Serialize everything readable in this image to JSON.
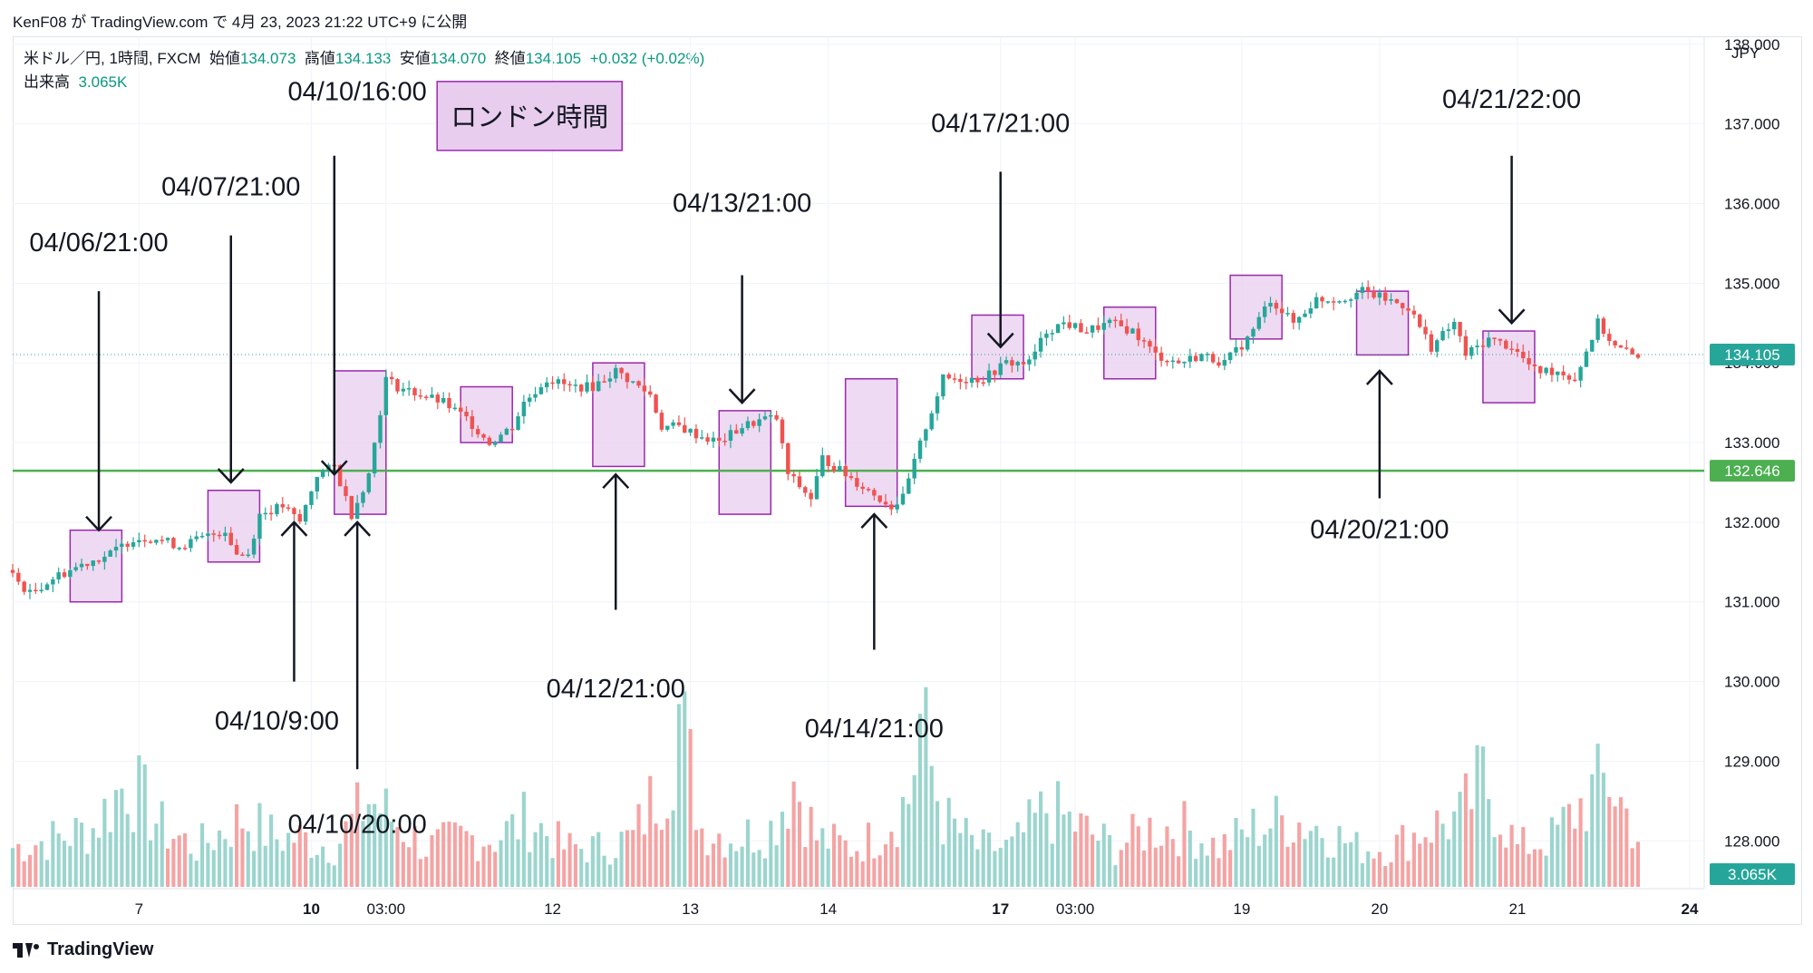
{
  "publish_line": "KenF08 が TradingView.com で 4月 23, 2023 21:22 UTC+9 に公開",
  "legend": {
    "symbol": "米ドル／円, 1時間, FXCM",
    "open_label": "始値",
    "open": "134.073",
    "high_label": "高値",
    "high": "134.133",
    "low_label": "安値",
    "low": "134.070",
    "close_label": "終値",
    "close": "134.105",
    "change": "+0.032 (+0.02%)",
    "volume_label": "出来高",
    "volume": "3.065K"
  },
  "brand": "TradingView",
  "colors": {
    "up": "#26a69a",
    "down": "#ef5350",
    "vol_up": "#9bd5ce",
    "vol_down": "#f5a3a3",
    "hline": "#4caf50",
    "box_fill": "#e8cdee",
    "box_stroke": "#9c27b0"
  },
  "chart_data": {
    "type": "candlestick",
    "currency": "JPY",
    "y_ticks": [
      "138.000",
      "137.000",
      "136.000",
      "135.000",
      "134.000",
      "133.000",
      "132.000",
      "131.000",
      "130.000",
      "129.000",
      "128.000"
    ],
    "ylim": [
      127.4,
      138.1
    ],
    "x_ticks": [
      {
        "label": "7",
        "t": 22,
        "bold": false
      },
      {
        "label": "10",
        "t": 52,
        "bold": true
      },
      {
        "label": "03:00",
        "t": 65,
        "bold": false
      },
      {
        "label": "12",
        "t": 94,
        "bold": false
      },
      {
        "label": "13",
        "t": 118,
        "bold": false
      },
      {
        "label": "14",
        "t": 142,
        "bold": false
      },
      {
        "label": "17",
        "t": 172,
        "bold": true
      },
      {
        "label": "03:00",
        "t": 185,
        "bold": false
      },
      {
        "label": "19",
        "t": 214,
        "bold": false
      },
      {
        "label": "20",
        "t": 238,
        "bold": false
      },
      {
        "label": "21",
        "t": 262,
        "bold": false
      },
      {
        "label": "24",
        "t": 292,
        "bold": true
      }
    ],
    "t_range": [
      0,
      292
    ],
    "last_price": "134.105",
    "last_price_value": 134.105,
    "level_price": "132.646",
    "level_value": 132.646,
    "volume_label": "3.065K",
    "price_path": [
      [
        0,
        131.4
      ],
      [
        4,
        131.1
      ],
      [
        8,
        131.3
      ],
      [
        14,
        131.5
      ],
      [
        18,
        131.6
      ],
      [
        22,
        131.8
      ],
      [
        26,
        131.8
      ],
      [
        30,
        131.7
      ],
      [
        34,
        131.8
      ],
      [
        38,
        131.9
      ],
      [
        40,
        131.6
      ],
      [
        42,
        131.6
      ],
      [
        44,
        132.1
      ],
      [
        48,
        132.2
      ],
      [
        51,
        132.0
      ],
      [
        54,
        132.6
      ],
      [
        57,
        132.7
      ],
      [
        60,
        132.1
      ],
      [
        63,
        132.6
      ],
      [
        66,
        133.8
      ],
      [
        68,
        133.7
      ],
      [
        72,
        133.6
      ],
      [
        76,
        133.5
      ],
      [
        80,
        133.3
      ],
      [
        84,
        133.0
      ],
      [
        88,
        133.2
      ],
      [
        90,
        133.5
      ],
      [
        94,
        133.8
      ],
      [
        98,
        133.7
      ],
      [
        102,
        133.7
      ],
      [
        106,
        133.9
      ],
      [
        108,
        133.8
      ],
      [
        112,
        133.6
      ],
      [
        114,
        133.2
      ],
      [
        117,
        133.2
      ],
      [
        120,
        133.1
      ],
      [
        124,
        133.0
      ],
      [
        128,
        133.2
      ],
      [
        132,
        133.3
      ],
      [
        134,
        133.3
      ],
      [
        136,
        132.6
      ],
      [
        140,
        132.3
      ],
      [
        142,
        132.8
      ],
      [
        146,
        132.6
      ],
      [
        150,
        132.4
      ],
      [
        154,
        132.2
      ],
      [
        156,
        132.3
      ],
      [
        160,
        133.2
      ],
      [
        163,
        133.8
      ],
      [
        166,
        133.8
      ],
      [
        170,
        133.8
      ],
      [
        174,
        134.0
      ],
      [
        178,
        134.0
      ],
      [
        181,
        134.4
      ],
      [
        184,
        134.5
      ],
      [
        188,
        134.4
      ],
      [
        192,
        134.5
      ],
      [
        196,
        134.4
      ],
      [
        200,
        134.1
      ],
      [
        204,
        134.0
      ],
      [
        208,
        134.1
      ],
      [
        212,
        134.0
      ],
      [
        216,
        134.3
      ],
      [
        220,
        134.8
      ],
      [
        224,
        134.5
      ],
      [
        228,
        134.8
      ],
      [
        232,
        134.8
      ],
      [
        236,
        134.9
      ],
      [
        240,
        134.8
      ],
      [
        244,
        134.7
      ],
      [
        248,
        134.2
      ],
      [
        252,
        134.5
      ],
      [
        254,
        134.1
      ],
      [
        258,
        134.3
      ],
      [
        262,
        134.2
      ],
      [
        266,
        133.9
      ],
      [
        270,
        133.9
      ],
      [
        273,
        133.8
      ],
      [
        277,
        134.5
      ],
      [
        280,
        134.2
      ],
      [
        283,
        134.1
      ]
    ],
    "volume_path": [
      [
        0,
        0.2
      ],
      [
        8,
        0.25
      ],
      [
        14,
        0.3
      ],
      [
        20,
        0.55
      ],
      [
        26,
        0.3
      ],
      [
        32,
        0.2
      ],
      [
        40,
        0.35
      ],
      [
        46,
        0.25
      ],
      [
        50,
        0.25
      ],
      [
        56,
        0.2
      ],
      [
        62,
        0.45
      ],
      [
        66,
        0.35
      ],
      [
        72,
        0.2
      ],
      [
        78,
        0.25
      ],
      [
        84,
        0.25
      ],
      [
        90,
        0.35
      ],
      [
        96,
        0.2
      ],
      [
        102,
        0.2
      ],
      [
        108,
        0.25
      ],
      [
        114,
        0.6
      ],
      [
        116,
        0.9
      ],
      [
        120,
        0.3
      ],
      [
        126,
        0.25
      ],
      [
        132,
        0.3
      ],
      [
        136,
        0.55
      ],
      [
        140,
        0.25
      ],
      [
        146,
        0.2
      ],
      [
        150,
        0.25
      ],
      [
        156,
        0.45
      ],
      [
        158,
        0.85
      ],
      [
        162,
        0.35
      ],
      [
        168,
        0.2
      ],
      [
        174,
        0.2
      ],
      [
        180,
        0.4
      ],
      [
        186,
        0.3
      ],
      [
        192,
        0.2
      ],
      [
        198,
        0.3
      ],
      [
        204,
        0.3
      ],
      [
        210,
        0.2
      ],
      [
        216,
        0.3
      ],
      [
        222,
        0.35
      ],
      [
        228,
        0.3
      ],
      [
        234,
        0.2
      ],
      [
        240,
        0.2
      ],
      [
        246,
        0.3
      ],
      [
        252,
        0.35
      ],
      [
        256,
        0.55
      ],
      [
        262,
        0.2
      ],
      [
        268,
        0.25
      ],
      [
        274,
        0.45
      ],
      [
        278,
        0.55
      ],
      [
        284,
        0.2
      ]
    ],
    "annotations": [
      {
        "label": "04/06/21:00",
        "text_t": 15,
        "text_p": 135.4,
        "arrow_t": 15,
        "from_p": 134.9,
        "to_p": 131.9,
        "dir": "down"
      },
      {
        "label": "04/07/21:00",
        "text_t": 38,
        "text_p": 136.1,
        "arrow_t": 38,
        "from_p": 135.6,
        "to_p": 132.5,
        "dir": "down"
      },
      {
        "label": "04/10/16:00",
        "text_t": 60,
        "text_p": 137.3,
        "arrow_t": 56,
        "from_p": 136.6,
        "to_p": 132.6,
        "dir": "down"
      },
      {
        "label": "04/10/9:00",
        "text_t": 46,
        "text_p": 129.4,
        "arrow_t": 49,
        "from_p": 130.0,
        "to_p": 132.0,
        "dir": "up"
      },
      {
        "label": "04/10/20:00",
        "text_t": 60,
        "text_p": 128.1,
        "arrow_t": 60,
        "from_p": 128.9,
        "to_p": 132.0,
        "dir": "up"
      },
      {
        "label": "04/12/21:00",
        "text_t": 105,
        "text_p": 129.8,
        "arrow_t": 105,
        "from_p": 130.9,
        "to_p": 132.6,
        "dir": "up"
      },
      {
        "label": "04/13/21:00",
        "text_t": 127,
        "text_p": 135.9,
        "arrow_t": 127,
        "from_p": 135.1,
        "to_p": 133.5,
        "dir": "down"
      },
      {
        "label": "04/14/21:00",
        "text_t": 150,
        "text_p": 129.3,
        "arrow_t": 150,
        "from_p": 130.4,
        "to_p": 132.1,
        "dir": "up"
      },
      {
        "label": "04/17/21:00",
        "text_t": 172,
        "text_p": 136.9,
        "arrow_t": 172,
        "from_p": 136.4,
        "to_p": 134.2,
        "dir": "down"
      },
      {
        "label": "04/20/21:00",
        "text_t": 238,
        "text_p": 131.8,
        "arrow_t": 238,
        "from_p": 132.3,
        "to_p": 133.9,
        "dir": "up"
      },
      {
        "label": "04/21/22:00",
        "text_t": 261,
        "text_p": 137.2,
        "arrow_t": 261,
        "from_p": 136.6,
        "to_p": 134.5,
        "dir": "down"
      }
    ],
    "boxes": [
      {
        "t0": 10,
        "t1": 19,
        "p_top": 131.9,
        "p_bot": 131.0
      },
      {
        "t0": 34,
        "t1": 43,
        "p_top": 132.4,
        "p_bot": 131.5
      },
      {
        "t0": 56,
        "t1": 65,
        "p_top": 133.9,
        "p_bot": 132.1
      },
      {
        "t0": 78,
        "t1": 87,
        "p_top": 133.7,
        "p_bot": 133.0
      },
      {
        "t0": 101,
        "t1": 110,
        "p_top": 134.0,
        "p_bot": 132.7
      },
      {
        "t0": 123,
        "t1": 132,
        "p_top": 133.4,
        "p_bot": 132.1
      },
      {
        "t0": 145,
        "t1": 154,
        "p_top": 133.8,
        "p_bot": 132.2
      },
      {
        "t0": 167,
        "t1": 176,
        "p_top": 134.6,
        "p_bot": 133.8
      },
      {
        "t0": 190,
        "t1": 199,
        "p_top": 134.7,
        "p_bot": 133.8
      },
      {
        "t0": 212,
        "t1": 221,
        "p_top": 135.1,
        "p_bot": 134.3
      },
      {
        "t0": 234,
        "t1": 243,
        "p_top": 134.9,
        "p_bot": 134.1
      },
      {
        "t0": 256,
        "t1": 265,
        "p_top": 134.4,
        "p_bot": 133.5
      }
    ],
    "note_box": {
      "label": "ロンドン時間",
      "t": 90,
      "p": 137.1
    }
  }
}
